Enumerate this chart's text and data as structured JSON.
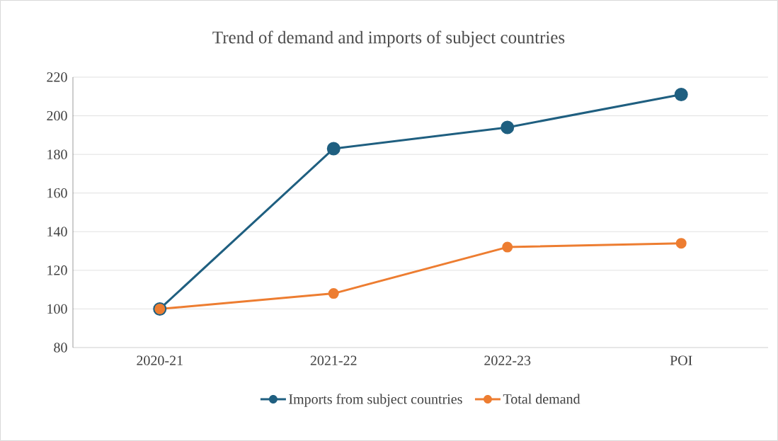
{
  "chart_data": {
    "type": "line",
    "title": "Trend of demand and imports of subject countries",
    "categories": [
      "2020-21",
      "2021-22",
      "2022-23",
      "POI"
    ],
    "series": [
      {
        "name": "Imports from subject countries",
        "color": "#1f5f80",
        "values": [
          100,
          183,
          194,
          211
        ]
      },
      {
        "name": "Total demand",
        "color": "#ed7d31",
        "values": [
          100,
          108,
          132,
          134
        ]
      }
    ],
    "ylim": [
      80,
      220
    ],
    "yticks": [
      80,
      100,
      120,
      140,
      160,
      180,
      200,
      220
    ],
    "grid": "y",
    "legend": "bottom",
    "marker": "circle",
    "line_style": "solid"
  }
}
